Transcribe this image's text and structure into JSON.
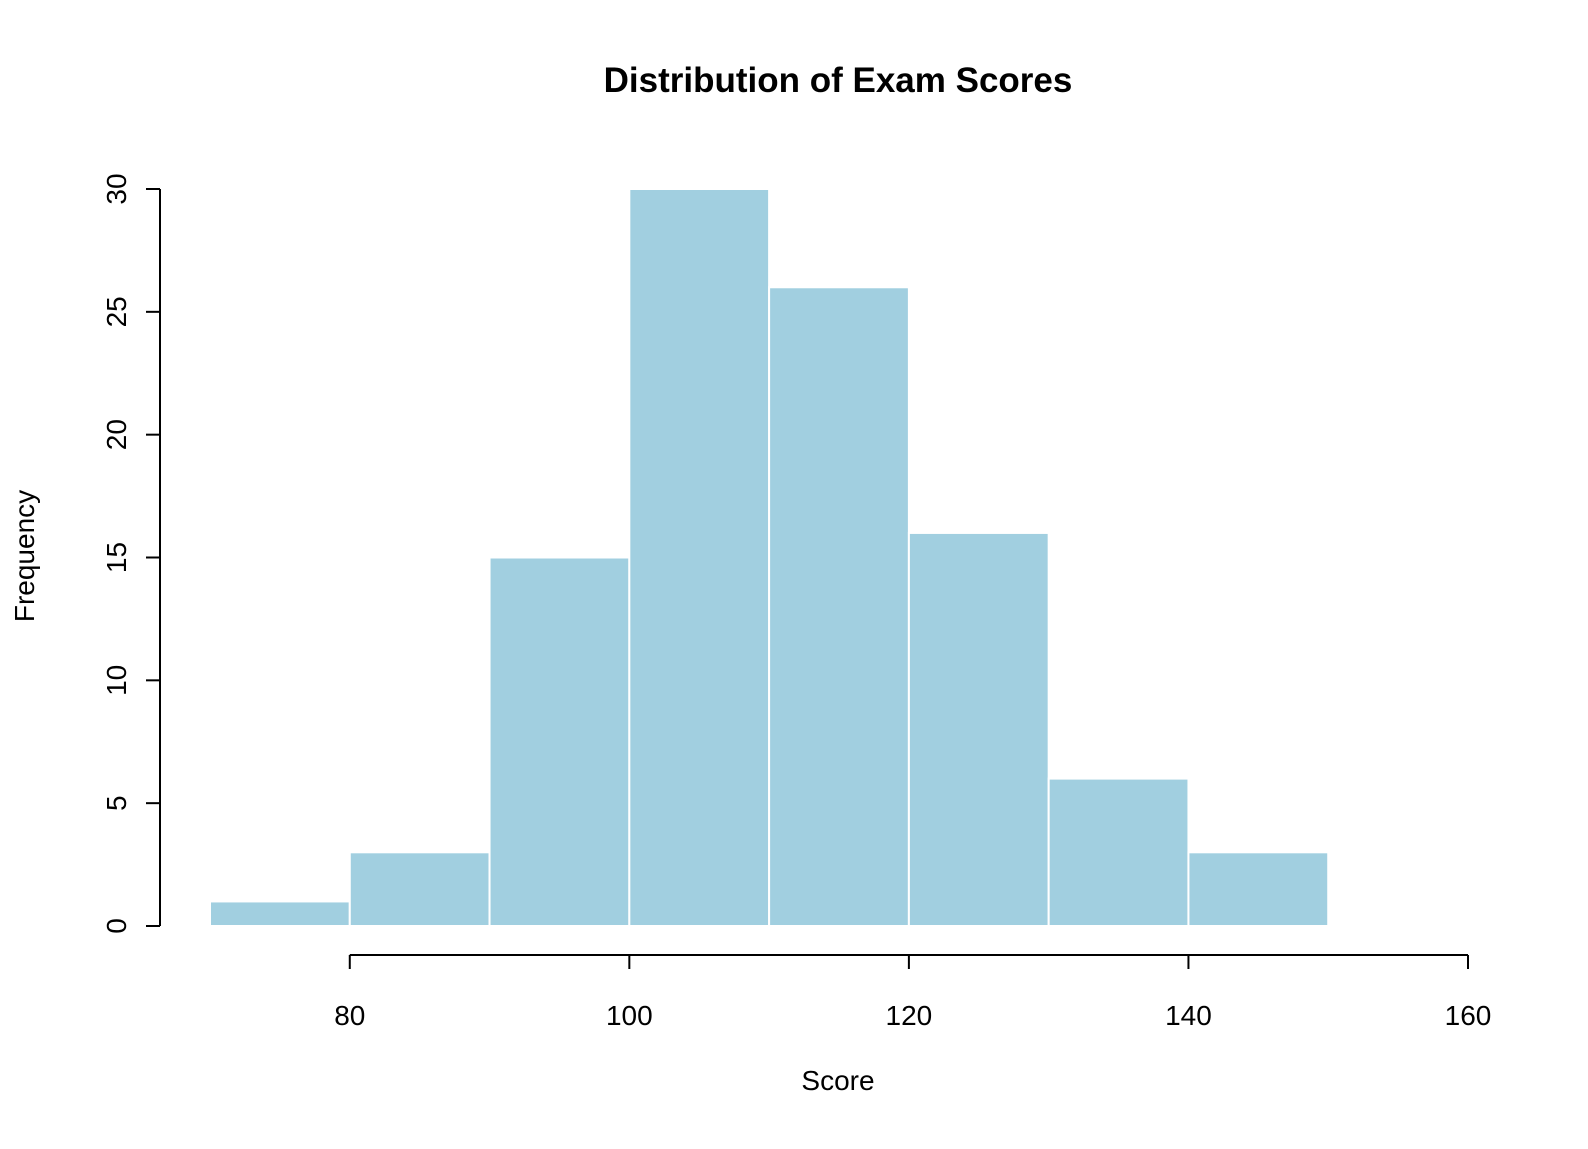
{
  "chart_data": {
    "type": "bar",
    "subtype": "histogram",
    "title": "Distribution of Exam Scores",
    "xlabel": "Score",
    "ylabel": "Frequency",
    "bins": [
      {
        "start": 70,
        "end": 80,
        "count": 1
      },
      {
        "start": 80,
        "end": 90,
        "count": 3
      },
      {
        "start": 90,
        "end": 100,
        "count": 15
      },
      {
        "start": 100,
        "end": 110,
        "count": 30
      },
      {
        "start": 110,
        "end": 120,
        "count": 26
      },
      {
        "start": 120,
        "end": 130,
        "count": 16
      },
      {
        "start": 130,
        "end": 140,
        "count": 6
      },
      {
        "start": 140,
        "end": 150,
        "count": 3
      }
    ],
    "xlim": [
      70,
      160
    ],
    "ylim": [
      0,
      30
    ],
    "x_ticks": [
      "80",
      "100",
      "120",
      "140",
      "160"
    ],
    "x_tick_values": [
      80,
      100,
      120,
      140,
      160
    ],
    "y_ticks": [
      "0",
      "5",
      "10",
      "15",
      "20",
      "25",
      "30"
    ],
    "y_tick_values": [
      0,
      5,
      10,
      15,
      20,
      25,
      30
    ],
    "grid": false,
    "bar_fill": "#a1cfe0",
    "bar_border": "#ffffff"
  }
}
